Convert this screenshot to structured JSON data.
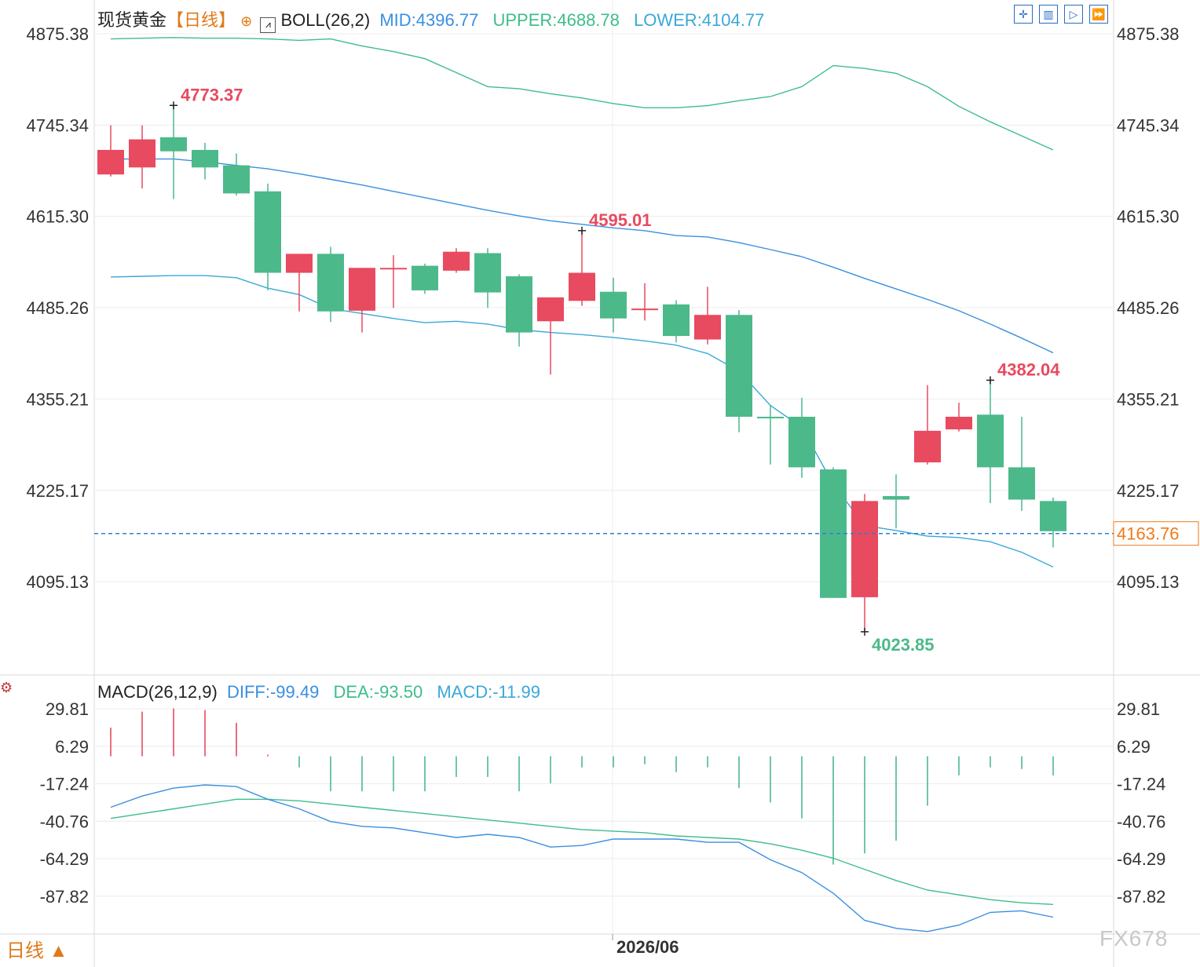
{
  "header": {
    "instrument": "现货黄金",
    "period": "【日线】",
    "period_icon": "zoom-circle-icon",
    "indicator": "BOLL(26,2)",
    "mid": "MID:4396.77",
    "upper": "UPPER:4688.78",
    "lower": "LOWER:4104.77"
  },
  "macd_header": {
    "title": "MACD(26,12,9)",
    "diff": "DIFF:-99.49",
    "dea": "DEA:-93.50",
    "macd": "MACD:-11.99"
  },
  "toolbar": [
    "crosshair-icon",
    "bar-chart-icon",
    "play-next-icon",
    "fast-forward-icon"
  ],
  "footer": {
    "period_badge": "日线 ▲",
    "date_label": "2026/06",
    "watermark": "FX678"
  },
  "colors": {
    "up": "#e84a5f",
    "down": "#4cb98a",
    "mid": "#3a8fe0",
    "band": "#3ebd8a",
    "last_price": "#f07a1a",
    "high_label": "#e84a5f",
    "low_label": "#4cb98a"
  },
  "chart_data": [
    {
      "type": "candlestick",
      "name": "现货黄金",
      "y_ticks": [
        "4875.38",
        "4745.34",
        "4615.30",
        "4485.26",
        "4355.21",
        "4225.17",
        "4095.13"
      ],
      "ylim": [
        4000,
        4900
      ],
      "last_price": 4163.76,
      "last_price_label": "4163.76",
      "annotations": [
        {
          "index": 2,
          "value": 4773.37,
          "label": "4773.37",
          "kind": "high"
        },
        {
          "index": 15,
          "value": 4595.01,
          "label": "4595.01",
          "kind": "high"
        },
        {
          "index": 28,
          "value": 4382.04,
          "label": "4382.04",
          "kind": "high"
        },
        {
          "index": 24,
          "value": 4023.85,
          "label": "4023.85",
          "kind": "low"
        }
      ],
      "candles": [
        {
          "o": 4675,
          "h": 4745,
          "l": 4672,
          "c": 4710
        },
        {
          "o": 4685,
          "h": 4745,
          "l": 4655,
          "c": 4725
        },
        {
          "o": 4728,
          "h": 4773.37,
          "l": 4640,
          "c": 4708
        },
        {
          "o": 4710,
          "h": 4720,
          "l": 4668,
          "c": 4685
        },
        {
          "o": 4688,
          "h": 4705,
          "l": 4645,
          "c": 4648
        },
        {
          "o": 4651,
          "h": 4662,
          "l": 4510,
          "c": 4535
        },
        {
          "o": 4535,
          "h": 4555,
          "l": 4480,
          "c": 4562
        },
        {
          "o": 4562,
          "h": 4572,
          "l": 4465,
          "c": 4480
        },
        {
          "o": 4481,
          "h": 4542,
          "l": 4450,
          "c": 4542
        },
        {
          "o": 4542,
          "h": 4560,
          "l": 4485,
          "c": 4542
        },
        {
          "o": 4545,
          "h": 4548,
          "l": 4505,
          "c": 4510
        },
        {
          "o": 4538,
          "h": 4570,
          "l": 4535,
          "c": 4565
        },
        {
          "o": 4563,
          "h": 4570,
          "l": 4485,
          "c": 4507
        },
        {
          "o": 4530,
          "h": 4533,
          "l": 4430,
          "c": 4450
        },
        {
          "o": 4466,
          "h": 4495,
          "l": 4390,
          "c": 4500
        },
        {
          "o": 4495,
          "h": 4595.01,
          "l": 4488,
          "c": 4535
        },
        {
          "o": 4508,
          "h": 4528,
          "l": 4450,
          "c": 4470
        },
        {
          "o": 4482,
          "h": 4520,
          "l": 4467,
          "c": 4484
        },
        {
          "o": 4490,
          "h": 4496,
          "l": 4436,
          "c": 4445
        },
        {
          "o": 4440,
          "h": 4515,
          "l": 4433,
          "c": 4475
        },
        {
          "o": 4475,
          "h": 4482,
          "l": 4308,
          "c": 4330
        },
        {
          "o": 4330,
          "h": 4347,
          "l": 4262,
          "c": 4328
        },
        {
          "o": 4330,
          "h": 4357,
          "l": 4243,
          "c": 4258
        },
        {
          "o": 4255,
          "h": 4258,
          "l": 4072,
          "c": 4072
        },
        {
          "o": 4073,
          "h": 4220,
          "l": 4023.85,
          "c": 4210
        },
        {
          "o": 4217,
          "h": 4248,
          "l": 4171,
          "c": 4212
        },
        {
          "o": 4265,
          "h": 4375,
          "l": 4262,
          "c": 4310
        },
        {
          "o": 4312,
          "h": 4350,
          "l": 4309,
          "c": 4330
        },
        {
          "o": 4333,
          "h": 4382.04,
          "l": 4207,
          "c": 4258
        },
        {
          "o": 4258,
          "h": 4330,
          "l": 4196,
          "c": 4212
        },
        {
          "o": 4210,
          "h": 4215,
          "l": 4144,
          "c": 4167
        }
      ],
      "boll": {
        "upper": [
          4868,
          4869,
          4870,
          4869,
          4869,
          4868,
          4866,
          4868,
          4858,
          4850,
          4840,
          4820,
          4800,
          4797,
          4790,
          4784,
          4776,
          4770,
          4770,
          4773,
          4780,
          4786,
          4800,
          4830,
          4826,
          4819,
          4800,
          4772,
          4750,
          4730,
          4710
        ],
        "mid": [
          4697,
          4697,
          4697,
          4693,
          4688,
          4683,
          4676,
          4668,
          4660,
          4651,
          4642,
          4633,
          4624,
          4616,
          4609,
          4604,
          4599,
          4595,
          4588,
          4586,
          4578,
          4568,
          4558,
          4543,
          4527,
          4512,
          4497,
          4481,
          4462,
          4442,
          4421
        ],
        "lower": [
          4529,
          4530,
          4531,
          4531,
          4528,
          4513,
          4504,
          4484,
          4477,
          4470,
          4464,
          4466,
          4462,
          4454,
          4450,
          4447,
          4443,
          4438,
          4432,
          4420,
          4395,
          4346,
          4315,
          4234,
          4175,
          4168,
          4160,
          4158,
          4152,
          4137,
          4116
        ]
      }
    },
    {
      "type": "macd",
      "name": "MACD(26,12,9)",
      "y_ticks": [
        "29.81",
        "6.29",
        "-17.24",
        "-40.76",
        "-64.29",
        "-87.82"
      ],
      "ylim": [
        -110,
        40
      ],
      "diff": [
        -32,
        -25,
        -20,
        -18,
        -19,
        -27,
        -33,
        -41,
        -44,
        -45,
        -48,
        -51,
        -49,
        -51,
        -57,
        -56,
        -52,
        -52,
        -52,
        -54,
        -54,
        -65,
        -73,
        -86,
        -103,
        -108,
        -110,
        -106,
        -98,
        -97,
        -101
      ],
      "dea": [
        -39,
        -36,
        -33,
        -30,
        -27,
        -27,
        -28,
        -30,
        -32,
        -34,
        -36,
        -38,
        -40,
        -42,
        -44,
        -46,
        -47,
        -48,
        -50,
        -51,
        -52,
        -55,
        -59,
        -64,
        -71,
        -78,
        -84,
        -87,
        -90,
        -92,
        -93
      ],
      "hist": [
        18,
        28,
        30,
        29,
        21,
        1,
        -7,
        -22,
        -22,
        -22,
        -22,
        -13,
        -13,
        -22,
        -17,
        -7,
        -7,
        -5,
        -10,
        -7,
        -20,
        -29,
        -39,
        -68,
        -61,
        -53,
        -31,
        -12,
        -7,
        -8,
        -12
      ]
    }
  ]
}
